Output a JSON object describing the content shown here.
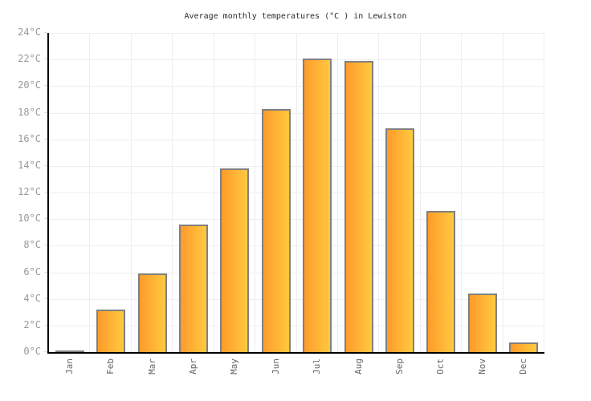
{
  "title": "Average monthly temperatures (°C ) in Lewiston",
  "chart_data": {
    "type": "bar",
    "title": "Average monthly temperatures (°C ) in Lewiston",
    "categories": [
      "Jan",
      "Feb",
      "Mar",
      "Apr",
      "May",
      "Jun",
      "Jul",
      "Aug",
      "Sep",
      "Oct",
      "Nov",
      "Dec"
    ],
    "values": [
      0.1,
      3.2,
      5.9,
      9.6,
      13.8,
      18.3,
      22.1,
      21.9,
      16.8,
      10.6,
      4.4,
      0.7
    ],
    "series_unit": "°C",
    "xlabel": "",
    "ylabel": "",
    "ylim": [
      0,
      24
    ],
    "ytick_step": 2,
    "ytick_labels": [
      "0°C",
      "2°C",
      "4°C",
      "6°C",
      "8°C",
      "10°C",
      "12°C",
      "14°C",
      "16°C",
      "18°C",
      "20°C",
      "22°C",
      "24°C"
    ],
    "grid": true,
    "legend_position": "none"
  },
  "colors": {
    "background": "#ffffff",
    "title": "#2b2b2b",
    "axis_line": "#000000",
    "grid_line": "#eeeeee",
    "bar_gradient_left": "#ff9b2b",
    "bar_gradient_right": "#ffc940",
    "bar_border": "#808080",
    "y_label": "#999999",
    "x_label": "#666666"
  }
}
